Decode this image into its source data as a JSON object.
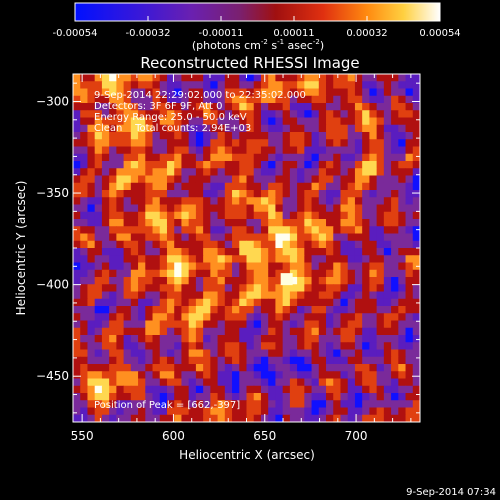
{
  "chart_data": {
    "type": "heatmap",
    "title": "Reconstructed RHESSI Image",
    "xlabel": "Heliocentric X (arcsec)",
    "ylabel": "Heliocentric Y (arcsec)",
    "xlim": [
      545,
      735
    ],
    "ylim": [
      -475,
      -285
    ],
    "x_ticks": [
      550,
      600,
      650,
      700
    ],
    "y_ticks": [
      -300,
      -350,
      -400,
      -450
    ],
    "colorbar": {
      "ticks": [
        "-0.00054",
        "-0.00032",
        "-0.00011",
        "0.00011",
        "0.00032",
        "0.00054"
      ],
      "unit_text": "(photons cm",
      "unit_exp1": "-2",
      "unit_mid": " s",
      "unit_exp2": "-1",
      "unit_mid2": " asec",
      "unit_exp3": "-2",
      "unit_end": ")",
      "range": [
        -0.00054,
        0.00054
      ]
    },
    "annotations": [
      "9-Sep-2014 22:29:02.000 to 22:35:02.000",
      "Detectors: 3F 6F 9F, Att 0",
      "Energy Range: 25.0 - 50.0 keV",
      "Clean    Total counts: 2.94E+03"
    ],
    "peak_label": "Position of Peak = [662,-397]",
    "peak": [
      662,
      -397
    ],
    "colors": [
      "#1010ff",
      "#5a1dbf",
      "#7a2a9a",
      "#b01010",
      "#e04010",
      "#ff9020",
      "#ffd850",
      "#fffff0"
    ]
  },
  "footer": {
    "timestamp": "9-Sep-2014 07:34"
  }
}
